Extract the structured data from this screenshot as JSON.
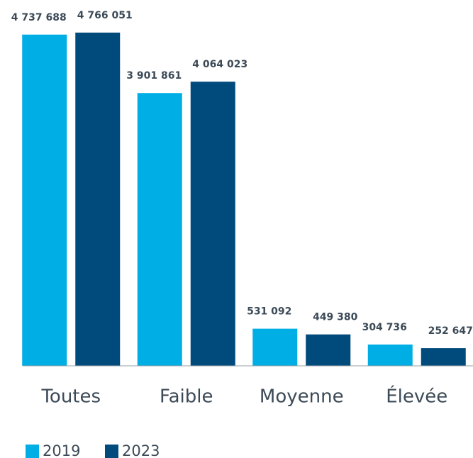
{
  "chart_data": {
    "type": "bar",
    "categories": [
      "Toutes",
      "Faible",
      "Moyenne",
      "Élevée"
    ],
    "series": [
      {
        "name": "2019",
        "color": "#00aee6",
        "values": [
          4737688,
          3901861,
          531092,
          304736
        ],
        "value_labels": [
          "4 737 688",
          "3 901 861",
          "531 092",
          "304 736"
        ]
      },
      {
        "name": "2023",
        "color": "#004a7c",
        "values": [
          4766051,
          4064023,
          449380,
          252647
        ],
        "value_labels": [
          "4 766 051",
          "4 064 023",
          "449 380",
          "252 647"
        ]
      }
    ]
  }
}
